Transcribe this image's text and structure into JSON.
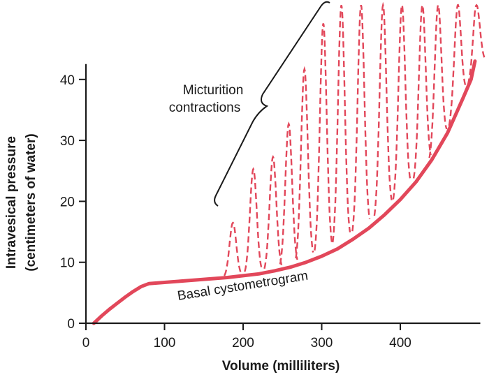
{
  "chart_data": {
    "type": "line",
    "title": "",
    "xlabel": "Volume (milliliters)",
    "ylabel_line1": "Intravesical pressure",
    "ylabel_line2": "(centimeters of water)",
    "xlim": [
      0,
      500
    ],
    "ylim": [
      0,
      40
    ],
    "x_ticks": [
      0,
      100,
      200,
      300,
      400
    ],
    "y_ticks": [
      0,
      10,
      20,
      30,
      40
    ],
    "colors": {
      "series": "#e2475a",
      "axis": "#1a1a1a"
    },
    "series": [
      {
        "name": "Basal cystometrogram",
        "style": "solid",
        "points": [
          [
            10,
            0
          ],
          [
            20,
            1.2
          ],
          [
            30,
            2.3
          ],
          [
            40,
            3.3
          ],
          [
            50,
            4.3
          ],
          [
            60,
            5.2
          ],
          [
            70,
            6.0
          ],
          [
            80,
            6.5
          ],
          [
            100,
            6.7
          ],
          [
            120,
            6.9
          ],
          [
            140,
            7.1
          ],
          [
            160,
            7.3
          ],
          [
            180,
            7.5
          ],
          [
            200,
            7.8
          ],
          [
            220,
            8.1
          ],
          [
            240,
            8.6
          ],
          [
            260,
            9.2
          ],
          [
            280,
            10.0
          ],
          [
            300,
            11.0
          ],
          [
            320,
            12.2
          ],
          [
            340,
            13.8
          ],
          [
            360,
            15.6
          ],
          [
            380,
            17.8
          ],
          [
            400,
            20.3
          ],
          [
            420,
            23.2
          ],
          [
            440,
            26.8
          ],
          [
            460,
            31.2
          ],
          [
            480,
            37.0
          ],
          [
            490,
            40.0
          ],
          [
            495,
            43.0
          ]
        ]
      },
      {
        "name": "Micturition contractions",
        "style": "dashed",
        "peaks": [
          [
            187,
            16.5
          ],
          [
            213,
            25.3
          ],
          [
            238,
            27.3
          ],
          [
            258,
            32.7
          ],
          [
            278,
            41.7
          ],
          [
            302,
            49.2
          ],
          [
            325,
            52.2
          ],
          [
            350,
            52.2
          ],
          [
            378,
            52.2
          ],
          [
            402,
            52.2
          ],
          [
            428,
            52.2
          ],
          [
            448,
            52.2
          ],
          [
            473,
            52.2
          ],
          [
            497,
            52.2
          ]
        ]
      }
    ],
    "annotations": [
      {
        "text_line1": "Micturition",
        "text_line2": "contractions"
      },
      {
        "text": "Basal cystometrogram"
      }
    ]
  }
}
